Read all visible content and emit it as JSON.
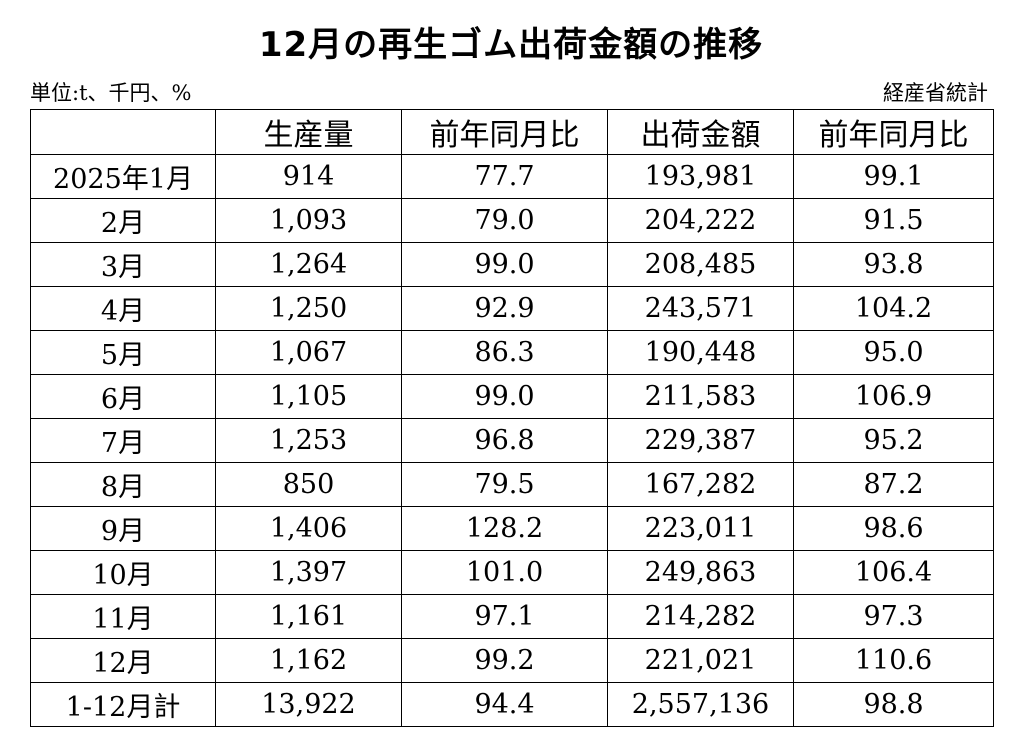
{
  "title": "12月の再生ゴム出荷金額の推移",
  "unit_label": "単位:t、千円、%",
  "source_label": "経産省統計",
  "table": {
    "headers": [
      "",
      "生産量",
      "前年同月比",
      "出荷金額",
      "前年同月比"
    ],
    "rows": [
      [
        "2025年1月",
        "914",
        "77.7",
        "193,981",
        "99.1"
      ],
      [
        "2月",
        "1,093",
        "79.0",
        "204,222",
        "91.5"
      ],
      [
        "3月",
        "1,264",
        "99.0",
        "208,485",
        "93.8"
      ],
      [
        "4月",
        "1,250",
        "92.9",
        "243,571",
        "104.2"
      ],
      [
        "5月",
        "1,067",
        "86.3",
        "190,448",
        "95.0"
      ],
      [
        "6月",
        "1,105",
        "99.0",
        "211,583",
        "106.9"
      ],
      [
        "7月",
        "1,253",
        "96.8",
        "229,387",
        "95.2"
      ],
      [
        "8月",
        "850",
        "79.5",
        "167,282",
        "87.2"
      ],
      [
        "9月",
        "1,406",
        "128.2",
        "223,011",
        "98.6"
      ],
      [
        "10月",
        "1,397",
        "101.0",
        "249,863",
        "106.4"
      ],
      [
        "11月",
        "1,161",
        "97.1",
        "214,282",
        "97.3"
      ],
      [
        "12月",
        "1,162",
        "99.2",
        "221,021",
        "110.6"
      ],
      [
        "1-12月計",
        "13,922",
        "94.4",
        "2,557,136",
        "98.8"
      ]
    ]
  }
}
